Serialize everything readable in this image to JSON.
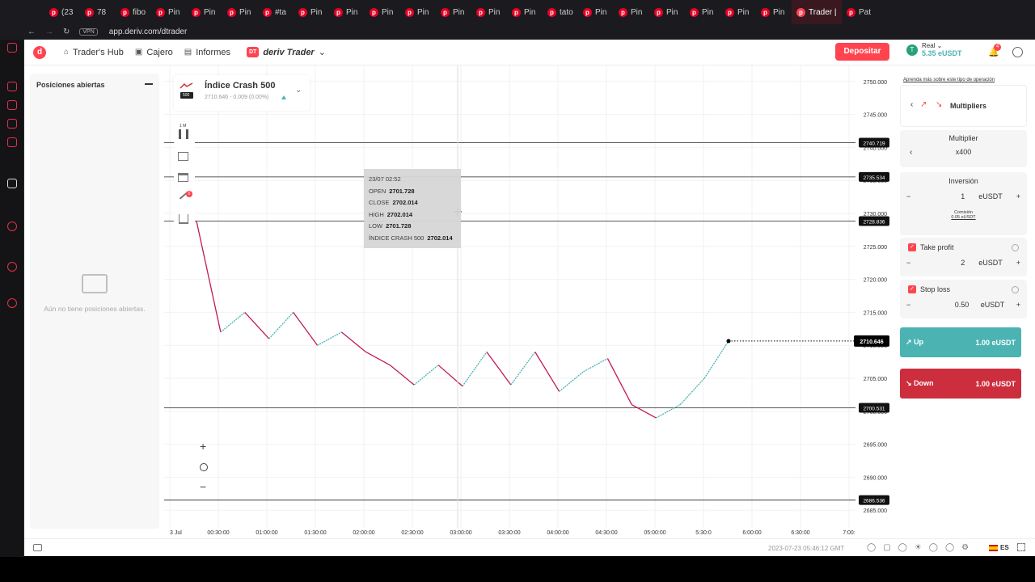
{
  "browser": {
    "tabs": [
      "(23",
      "78",
      "fibo",
      "Pin",
      "Pin",
      "Pin",
      "#ta",
      "Pin",
      "Pin",
      "Pin",
      "Pin",
      "Pin",
      "Pin",
      "Pin",
      "tato",
      "Pin",
      "Pin",
      "Pin",
      "Pin",
      "Pin",
      "Pin",
      "Trader |",
      "Pat"
    ],
    "active_tab": "Trader |",
    "url": "app.deriv.com/dtrader",
    "vpn": "VPN"
  },
  "nav": {
    "traders_hub": "Trader's Hub",
    "cashier": "Cajero",
    "reports": "Informes",
    "brand": "deriv Trader",
    "brand_short": "DT",
    "account_type": "Real",
    "balance": "5.35 eUSDT",
    "deposit": "Depositar",
    "notif_count": "4"
  },
  "positions": {
    "title": "Posiciones abiertas",
    "empty": "Aún no tiene posiciones abiertas."
  },
  "symbol": {
    "name": "Índice Crash 500",
    "quote": "2710.646 - 0.009 (0.00%)",
    "icon": "500"
  },
  "toolbar": {
    "interval": "1 M",
    "badge": "6"
  },
  "tooltip": {
    "date": "23/07 02:52",
    "open_label": "OPEN",
    "open": "2701.728",
    "close_label": "CLOSE",
    "close": "2702.014",
    "high_label": "HIGH",
    "high": "2702.014",
    "low_label": "LOW",
    "low": "2701.728",
    "index_label": "ÍNDICE CRASH 500",
    "index": "2702.014"
  },
  "chart_data": {
    "type": "line",
    "yticks": [
      "2750.000",
      "2745.000",
      "2740.000",
      "2735.000",
      "2730.000",
      "2725.000",
      "2720.000",
      "2715.000",
      "2710.000",
      "2705.000",
      "2700.000",
      "2695.000",
      "2690.000",
      "2685.000"
    ],
    "xticks": [
      "3 Jul",
      "00:30:00",
      "01:00:00",
      "01:30:00",
      "02:00:00",
      "02:30:00",
      "03:00:00",
      "03:30:00",
      "04:00:00",
      "04:30:00",
      "05:00:00",
      "5:30:0",
      "6:00:00",
      "6:30:00",
      "7:00:"
    ],
    "hlines": [
      "2740.719",
      "2735.534",
      "2728.836",
      "2700.531",
      "2686.536"
    ],
    "current": "2710.646",
    "ylim": [
      2683.8,
      2751.2
    ],
    "values": [
      2728.836,
      2712,
      2715,
      2711,
      2715,
      2710,
      2712,
      2709,
      2707,
      2704,
      2707,
      2703.8,
      2709,
      2704,
      2709,
      2703,
      2706,
      2708,
      2701,
      2699,
      2701,
      2705,
      2710.646
    ]
  },
  "trade": {
    "learn": "Aprenda más sobre este tipo de operación",
    "type": "Multipliers",
    "multiplier_label": "Multiplier",
    "multiplier": "x400",
    "stake_label": "Inversión",
    "stake": "1",
    "currency": "eUSDT",
    "commission_label": "Comisión",
    "commission": "0.05 eUSDT",
    "tp_label": "Take profit",
    "tp": "2",
    "sl_label": "Stop loss",
    "sl": "0.50",
    "up_label": "Up",
    "up_value": "1.00 eUSDT",
    "down_label": "Down",
    "down_value": "1.00 eUSDT",
    "colors": {
      "up": "#4bb4b3",
      "down": "#cc2e3d",
      "accent": "#ff444f"
    }
  },
  "status": {
    "time": "2023-07-23 05:46:12 GMT",
    "lang": "ES"
  }
}
